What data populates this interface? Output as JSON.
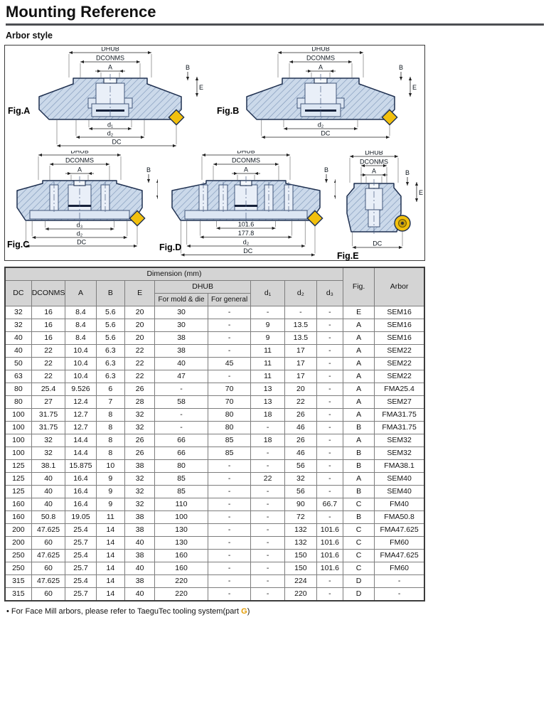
{
  "page": {
    "title": "Mounting Reference",
    "subtitle": "Arbor style"
  },
  "colors": {
    "accent_gold": "#f2c00d",
    "body_fill": "#cbd9ea",
    "hatch_line": "#7e96b8",
    "outline_navy": "#1f3050",
    "header_gray": "#d4d4d4"
  },
  "figures": [
    {
      "id": "A",
      "label": "Fig.A",
      "top": [
        "DHUB",
        "DCONMS",
        "A"
      ],
      "right": [
        "B",
        "E"
      ],
      "bottom": [
        "d₁",
        "d₂",
        "DC"
      ],
      "insert": "diamond"
    },
    {
      "id": "B",
      "label": "Fig.B",
      "top": [
        "DHUB",
        "DCONMS",
        "A"
      ],
      "right": [
        "B",
        "E"
      ],
      "bottom": [
        "d₂",
        "DC"
      ],
      "insert": "diamond"
    },
    {
      "id": "C",
      "label": "Fig.C",
      "top": [
        "DHUB",
        "DCONMS",
        "A"
      ],
      "right": [
        "B",
        "E"
      ],
      "bottom": [
        "d₃",
        "d₂",
        "DC"
      ],
      "insert": "diamond"
    },
    {
      "id": "D",
      "label": "Fig.D",
      "top": [
        "DHUB",
        "DCONMS",
        "A"
      ],
      "right": [
        "B",
        "E"
      ],
      "bottom": [
        "101.6",
        "177.8",
        "d₂",
        "DC"
      ],
      "insert": "diamond"
    },
    {
      "id": "E",
      "label": "Fig.E",
      "top": [
        "DHUB",
        "DCONMS",
        "A"
      ],
      "right": [
        "B",
        "E"
      ],
      "bottom": [
        "DC"
      ],
      "insert": "round-screw"
    }
  ],
  "table": {
    "group_header": "Dimension (mm)",
    "cols": {
      "dc": "DC",
      "dconms": "DCONMS",
      "a": "A",
      "b": "B",
      "e": "E",
      "dhub": "DHUB",
      "d1": "d₁",
      "d2": "d₂",
      "d3": "d₃",
      "fig": "Fig.",
      "arbor": "Arbor"
    },
    "dhub_sub": [
      "For mold & die",
      "For general"
    ],
    "rows": [
      [
        "32",
        "16",
        "8.4",
        "5.6",
        "20",
        "30",
        "-",
        "-",
        "-",
        "-",
        "E",
        "SEM16"
      ],
      [
        "32",
        "16",
        "8.4",
        "5.6",
        "20",
        "30",
        "-",
        "9",
        "13.5",
        "-",
        "A",
        "SEM16"
      ],
      [
        "40",
        "16",
        "8.4",
        "5.6",
        "20",
        "38",
        "-",
        "9",
        "13.5",
        "-",
        "A",
        "SEM16"
      ],
      [
        "40",
        "22",
        "10.4",
        "6.3",
        "22",
        "38",
        "-",
        "11",
        "17",
        "-",
        "A",
        "SEM22"
      ],
      [
        "50",
        "22",
        "10.4",
        "6.3",
        "22",
        "40",
        "45",
        "11",
        "17",
        "-",
        "A",
        "SEM22"
      ],
      [
        "63",
        "22",
        "10.4",
        "6.3",
        "22",
        "47",
        "-",
        "11",
        "17",
        "-",
        "A",
        "SEM22"
      ],
      [
        "80",
        "25.4",
        "9.526",
        "6",
        "26",
        "-",
        "70",
        "13",
        "20",
        "-",
        "A",
        "FMA25.4"
      ],
      [
        "80",
        "27",
        "12.4",
        "7",
        "28",
        "58",
        "70",
        "13",
        "22",
        "-",
        "A",
        "SEM27"
      ],
      [
        "100",
        "31.75",
        "12.7",
        "8",
        "32",
        "-",
        "80",
        "18",
        "26",
        "-",
        "A",
        "FMA31.75"
      ],
      [
        "100",
        "31.75",
        "12.7",
        "8",
        "32",
        "-",
        "80",
        "-",
        "46",
        "-",
        "B",
        "FMA31.75"
      ],
      [
        "100",
        "32",
        "14.4",
        "8",
        "26",
        "66",
        "85",
        "18",
        "26",
        "-",
        "A",
        "SEM32"
      ],
      [
        "100",
        "32",
        "14.4",
        "8",
        "26",
        "66",
        "85",
        "-",
        "46",
        "-",
        "B",
        "SEM32"
      ],
      [
        "125",
        "38.1",
        "15.875",
        "10",
        "38",
        "80",
        "-",
        "-",
        "56",
        "-",
        "B",
        "FMA38.1"
      ],
      [
        "125",
        "40",
        "16.4",
        "9",
        "32",
        "85",
        "-",
        "22",
        "32",
        "-",
        "A",
        "SEM40"
      ],
      [
        "125",
        "40",
        "16.4",
        "9",
        "32",
        "85",
        "-",
        "-",
        "56",
        "-",
        "B",
        "SEM40"
      ],
      [
        "160",
        "40",
        "16.4",
        "9",
        "32",
        "110",
        "-",
        "-",
        "90",
        "66.7",
        "C",
        "FM40"
      ],
      [
        "160",
        "50.8",
        "19.05",
        "11",
        "38",
        "100",
        "-",
        "-",
        "72",
        "-",
        "B",
        "FMA50.8"
      ],
      [
        "200",
        "47.625",
        "25.4",
        "14",
        "38",
        "130",
        "-",
        "-",
        "132",
        "101.6",
        "C",
        "FMA47.625"
      ],
      [
        "200",
        "60",
        "25.7",
        "14",
        "40",
        "130",
        "-",
        "-",
        "132",
        "101.6",
        "C",
        "FM60"
      ],
      [
        "250",
        "47.625",
        "25.4",
        "14",
        "38",
        "160",
        "-",
        "-",
        "150",
        "101.6",
        "C",
        "FMA47.625"
      ],
      [
        "250",
        "60",
        "25.7",
        "14",
        "40",
        "160",
        "-",
        "-",
        "150",
        "101.6",
        "C",
        "FM60"
      ],
      [
        "315",
        "47.625",
        "25.4",
        "14",
        "38",
        "220",
        "-",
        "-",
        "224",
        "-",
        "D",
        "-"
      ],
      [
        "315",
        "60",
        "25.7",
        "14",
        "40",
        "220",
        "-",
        "-",
        "220",
        "-",
        "D",
        "-"
      ]
    ]
  },
  "footnote": {
    "bullet": "•",
    "text": "For Face Mill arbors, please refer to TaeguTec tooling system(part ",
    "ref": "G",
    "suffix": ")"
  }
}
